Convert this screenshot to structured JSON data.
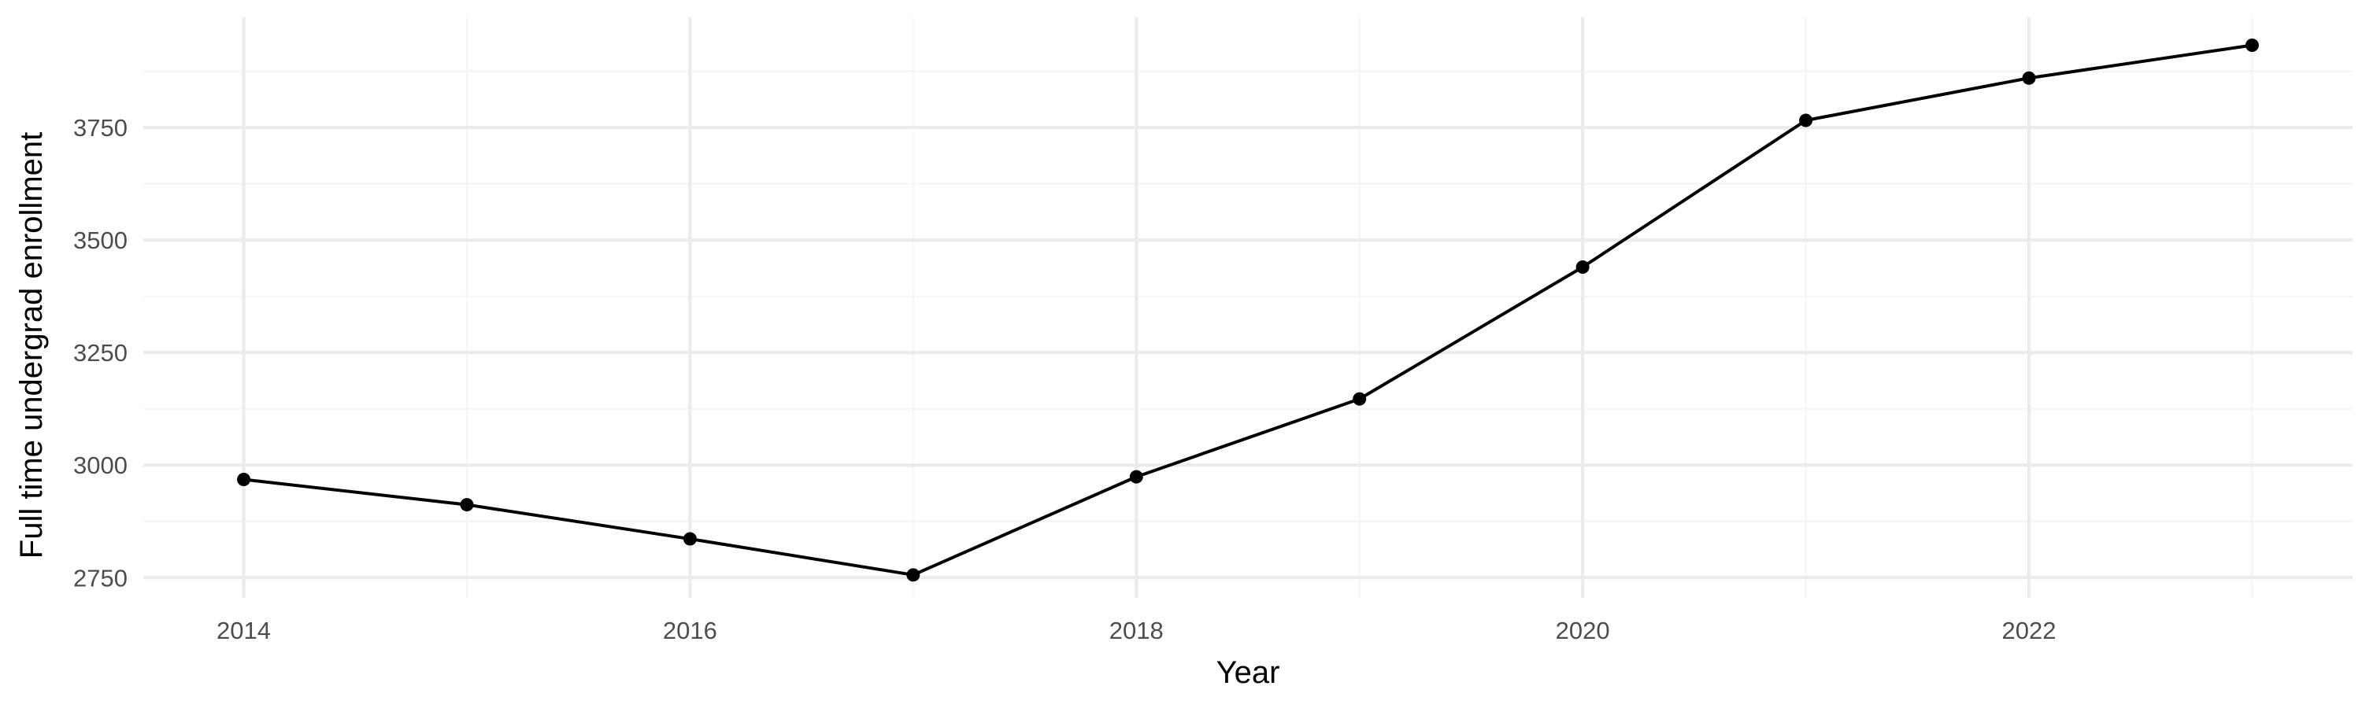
{
  "chart_data": {
    "type": "line",
    "title": "",
    "xlabel": "Year",
    "ylabel": "Full time undergrad enrollment",
    "x": [
      2014,
      2015,
      2016,
      2017,
      2018,
      2019,
      2020,
      2021,
      2022,
      2023
    ],
    "series": [
      {
        "values": [
          2968,
          2912,
          2836,
          2756,
          2974,
          3147,
          3440,
          3766,
          3860,
          3933
        ]
      }
    ],
    "xlim": [
      2013.55,
      2023.45
    ],
    "ylim": [
      2705,
      3995
    ],
    "xticks": [
      2014,
      2016,
      2018,
      2020,
      2022
    ],
    "yticks": [
      2750,
      3000,
      3250,
      3500,
      3750
    ],
    "x_minor": [
      2015,
      2017,
      2019,
      2021,
      2023
    ],
    "y_minor": [
      2875,
      3125,
      3375,
      3625,
      3875
    ],
    "grid": true,
    "legend": "none",
    "colors": {
      "line": "#000000",
      "point": "#000000",
      "grid_major": "#ebebeb",
      "grid_minor": "#f5f5f5",
      "tick_text": "#4d4d4d",
      "title_text": "#000000"
    }
  }
}
